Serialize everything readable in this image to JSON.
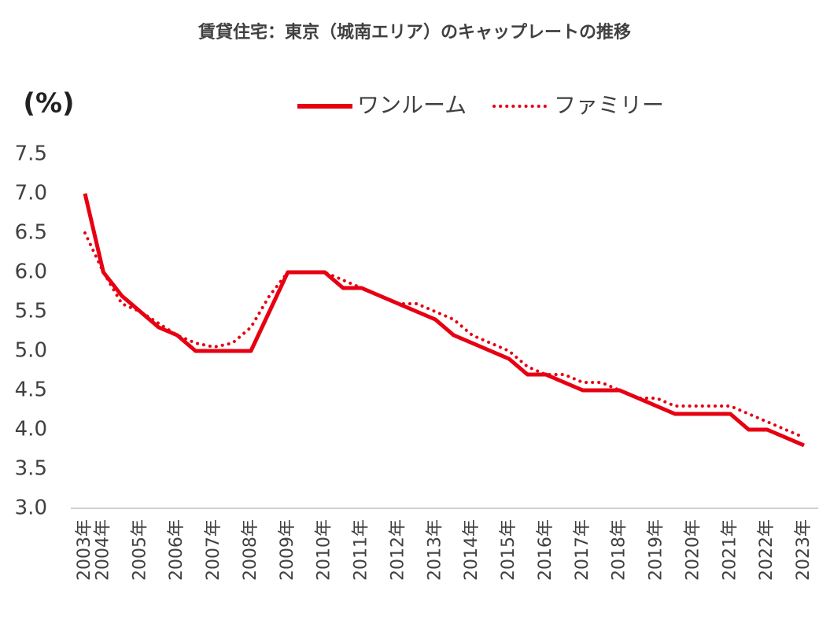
{
  "chart_data": {
    "type": "line",
    "title": "賃貸住宅：東京（城南エリア）のキャップレートの推移",
    "y_label": "(%)",
    "categories": [
      "2003年",
      "2004年",
      null,
      "2005年",
      null,
      "2006年",
      null,
      "2007年",
      null,
      "2008年",
      null,
      "2009年",
      null,
      "2010年",
      null,
      "2011年",
      null,
      "2012年",
      null,
      "2013年",
      null,
      "2014年",
      null,
      "2015年",
      null,
      "2016年",
      null,
      "2017年",
      null,
      "2018年",
      null,
      "2019年",
      null,
      "2020年",
      null,
      "2021年",
      null,
      "2022年",
      null,
      "2023年"
    ],
    "series": [
      {
        "name": "ワンルーム",
        "color": "#e60012",
        "style": "solid",
        "values": [
          7.0,
          6.0,
          5.7,
          5.5,
          5.3,
          5.2,
          5.0,
          5.0,
          5.0,
          5.0,
          5.5,
          6.0,
          6.0,
          6.0,
          5.8,
          5.8,
          5.7,
          5.6,
          5.5,
          5.4,
          5.2,
          5.1,
          5.0,
          4.9,
          4.7,
          4.7,
          4.6,
          4.5,
          4.5,
          4.5,
          4.4,
          4.3,
          4.2,
          4.2,
          4.2,
          4.2,
          4.0,
          4.0,
          3.9,
          3.8
        ]
      },
      {
        "name": "ファミリー",
        "color": "#e60012",
        "style": "dotted",
        "values": [
          6.5,
          6.0,
          5.6,
          5.5,
          5.35,
          5.2,
          5.1,
          5.05,
          5.1,
          5.3,
          5.7,
          6.0,
          6.0,
          6.0,
          5.9,
          5.8,
          5.7,
          5.6,
          5.6,
          5.5,
          5.4,
          5.2,
          5.1,
          5.0,
          4.8,
          4.7,
          4.7,
          4.6,
          4.6,
          4.5,
          4.4,
          4.4,
          4.3,
          4.3,
          4.3,
          4.3,
          4.2,
          4.1,
          4.0,
          3.9
        ]
      }
    ],
    "ylim": [
      3,
      7.5
    ],
    "yticks": [
      {
        "value": 3,
        "label": "3.0"
      },
      3.5,
      {
        "value": 4,
        "label": "4.0"
      },
      4.5,
      {
        "value": 5,
        "label": "5.0"
      },
      5.5,
      {
        "value": 6,
        "label": "6.0"
      },
      6.5,
      {
        "value": 7,
        "label": "7.0"
      },
      7.5
    ],
    "grid": false,
    "legend": "top"
  }
}
